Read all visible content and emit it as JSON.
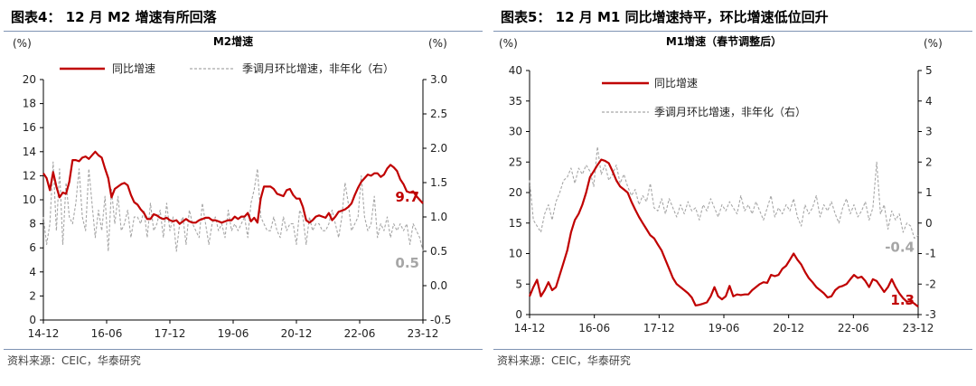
{
  "charts": [
    {
      "title": "图表4： 12 月 M2 增速有所回落",
      "source": "资料来源：CEIC，华泰研究",
      "chart_data": {
        "type": "line",
        "title": "M2增速",
        "left_axis_unit": "(%)",
        "right_axis_unit": "(%)",
        "left_ylim": [
          0,
          20
        ],
        "left_ticks": [
          "0",
          "2",
          "4",
          "6",
          "8",
          "10",
          "12",
          "14",
          "16",
          "18",
          "20"
        ],
        "right_ylim": [
          -0.5,
          3.0
        ],
        "right_ticks": [
          "-0.5",
          "0.0",
          "0.5",
          "1.0",
          "1.5",
          "2.0",
          "2.5",
          "3.0"
        ],
        "x_ticks": [
          "14-12",
          "16-06",
          "17-12",
          "19-06",
          "20-12",
          "22-06",
          "23-12"
        ],
        "grid": false,
        "legend_position": "top",
        "series": [
          {
            "name": "同比增速",
            "axis": "left",
            "color": "#c00000",
            "end_label": "9.7",
            "values": [
              12.2,
              11.8,
              10.8,
              12.3,
              11.1,
              10.2,
              10.6,
              10.5,
              11.5,
              13.3,
              13.3,
              13.2,
              13.5,
              13.6,
              13.4,
              13.7,
              14.0,
              13.7,
              13.5,
              12.6,
              11.8,
              10.2,
              10.9,
              11.1,
              11.3,
              11.4,
              11.2,
              10.4,
              9.8,
              9.6,
              9.2,
              8.9,
              8.4,
              8.4,
              8.8,
              8.7,
              8.5,
              8.4,
              8.5,
              8.3,
              8.2,
              8.3,
              8.0,
              8.2,
              8.4,
              8.2,
              8.1,
              8.1,
              8.3,
              8.4,
              8.5,
              8.5,
              8.3,
              8.3,
              8.2,
              8.1,
              8.2,
              8.3,
              8.3,
              8.6,
              8.4,
              8.6,
              8.6,
              8.9,
              8.2,
              8.5,
              8.1,
              10.1,
              11.1,
              11.1,
              11.1,
              10.9,
              10.5,
              10.4,
              10.3,
              10.8,
              10.9,
              10.4,
              10.1,
              10.1,
              9.4,
              8.3,
              8.1,
              8.3,
              8.6,
              8.7,
              8.6,
              8.5,
              8.9,
              8.3,
              8.6,
              9.0,
              9.1,
              9.2,
              9.4,
              9.7,
              10.4,
              11.0,
              11.5,
              11.8,
              12.1,
              12.0,
              12.2,
              12.2,
              11.9,
              12.1,
              12.6,
              12.9,
              12.7,
              12.4,
              11.7,
              11.3,
              10.7,
              10.6,
              10.7,
              10.3,
              10.0,
              9.7
            ]
          },
          {
            "name": "季调月环比增速，非年化（右）",
            "axis": "right",
            "color": "#a6a6a6",
            "end_label": "0.5",
            "values": [
              1.0,
              0.6,
              0.9,
              1.8,
              0.8,
              1.7,
              0.6,
              1.5,
              1.0,
              0.9,
              1.2,
              1.7,
              1.0,
              0.8,
              1.7,
              1.2,
              0.7,
              1.1,
              0.8,
              1.3,
              0.5,
              1.4,
              0.9,
              1.3,
              0.8,
              0.9,
              1.1,
              0.7,
              1.0,
              1.0,
              0.9,
              1.1,
              0.7,
              1.2,
              0.8,
              0.9,
              1.1,
              0.7,
              1.2,
              0.8,
              1.0,
              0.5,
              0.9,
              1.0,
              0.6,
              1.1,
              0.9,
              0.8,
              0.7,
              1.2,
              0.9,
              0.6,
              0.9,
              1.0,
              0.8,
              0.9,
              0.7,
              1.1,
              0.8,
              0.9,
              0.8,
              0.9,
              1.0,
              0.7,
              1.2,
              1.4,
              1.7,
              1.0,
              0.9,
              0.8,
              0.8,
              1.0,
              0.8,
              0.7,
              1.0,
              0.8,
              0.9,
              0.9,
              0.6,
              1.1,
              1.0,
              0.6,
              1.0,
              0.8,
              0.9,
              0.9,
              0.8,
              0.8,
              0.9,
              1.1,
              0.9,
              0.7,
              1.0,
              1.5,
              1.2,
              0.8,
              0.9,
              1.0,
              1.6,
              1.0,
              0.8,
              0.9,
              1.3,
              0.7,
              0.9,
              0.8,
              1.0,
              0.7,
              0.9,
              0.8,
              0.9,
              0.8,
              0.9,
              0.6,
              0.9,
              0.8,
              0.7,
              0.5
            ]
          }
        ]
      }
    },
    {
      "title": "图表5： 12 月 M1 同比增速持平，环比增速低位回升",
      "source": "资料来源：CEIC，华泰研究",
      "chart_data": {
        "type": "line",
        "title": "M1增速（春节调整后）",
        "left_axis_unit": "(%)",
        "right_axis_unit": "(%)",
        "left_ylim": [
          0,
          40
        ],
        "left_ticks": [
          "0",
          "5",
          "10",
          "15",
          "20",
          "25",
          "30",
          "35",
          "40"
        ],
        "right_ylim": [
          -3,
          5
        ],
        "right_ticks": [
          "-3",
          "-2",
          "-1",
          "0",
          "1",
          "2",
          "3",
          "4",
          "5"
        ],
        "x_ticks": [
          "14-12",
          "16-06",
          "17-12",
          "19-06",
          "20-12",
          "22-06",
          "23-12"
        ],
        "grid": false,
        "legend_position": "top-left",
        "series": [
          {
            "name": "同比增速",
            "axis": "left",
            "color": "#c00000",
            "end_label": "1.3",
            "values": [
              3.0,
              4.5,
              5.7,
              3.0,
              4.0,
              5.3,
              4.0,
              4.5,
              6.5,
              8.5,
              10.5,
              13.5,
              15.5,
              16.5,
              18.0,
              20.0,
              22.5,
              23.5,
              24.5,
              25.4,
              25.2,
              24.8,
              23.5,
              22.0,
              21.0,
              20.5,
              20.0,
              18.5,
              17.2,
              16.0,
              15.0,
              14.0,
              13.0,
              12.5,
              11.5,
              10.5,
              9.0,
              7.5,
              6.0,
              5.0,
              4.5,
              4.0,
              3.5,
              2.8,
              1.5,
              1.6,
              1.8,
              2.0,
              3.0,
              4.5,
              3.0,
              2.5,
              3.0,
              4.7,
              3.0,
              3.3,
              3.2,
              3.3,
              3.3,
              4.0,
              4.5,
              5.0,
              5.3,
              5.2,
              6.5,
              6.3,
              6.5,
              7.5,
              8.0,
              9.0,
              10.0,
              9.0,
              8.2,
              7.0,
              6.0,
              5.3,
              4.5,
              4.0,
              3.5,
              2.8,
              3.0,
              4.0,
              4.5,
              4.7,
              5.0,
              5.8,
              6.5,
              6.0,
              6.2,
              5.5,
              4.5,
              5.8,
              5.5,
              4.6,
              3.7,
              4.5,
              5.8,
              4.5,
              3.5,
              2.7,
              2.1,
              2.2,
              1.8,
              1.3
            ]
          },
          {
            "name": "季调月环比增速，非年化（右）",
            "axis": "right",
            "color": "#a6a6a6",
            "end_label": "-0.4",
            "values": [
              1.4,
              0.1,
              -0.1,
              -0.3,
              0.3,
              0.6,
              0.1,
              0.7,
              1.0,
              1.4,
              1.5,
              1.8,
              1.3,
              1.8,
              1.6,
              1.9,
              1.7,
              1.2,
              2.5,
              1.6,
              1.9,
              1.4,
              1.6,
              1.9,
              1.3,
              1.6,
              1.2,
              0.9,
              1.1,
              0.6,
              0.9,
              0.7,
              1.3,
              0.5,
              0.4,
              0.8,
              0.3,
              0.8,
              0.5,
              0.2,
              0.6,
              0.3,
              0.7,
              0.4,
              0.5,
              0.1,
              0.6,
              0.4,
              0.8,
              0.5,
              0.2,
              0.6,
              0.4,
              0.7,
              0.5,
              0.3,
              0.9,
              0.4,
              0.6,
              0.3,
              0.7,
              0.4,
              0.1,
              0.5,
              0.9,
              0.2,
              0.5,
              0.3,
              0.6,
              0.4,
              0.8,
              0.2,
              -0.1,
              0.6,
              0.3,
              0.5,
              0.9,
              0.2,
              0.6,
              0.4,
              0.7,
              0.3,
              0.0,
              0.5,
              0.8,
              0.3,
              0.6,
              0.2,
              0.4,
              0.7,
              0.1,
              0.5,
              2.0,
              0.3,
              0.6,
              -0.2,
              0.4,
              0.1,
              0.3,
              -0.3,
              0.0,
              -0.1,
              -0.5,
              -0.4
            ]
          }
        ]
      }
    }
  ]
}
